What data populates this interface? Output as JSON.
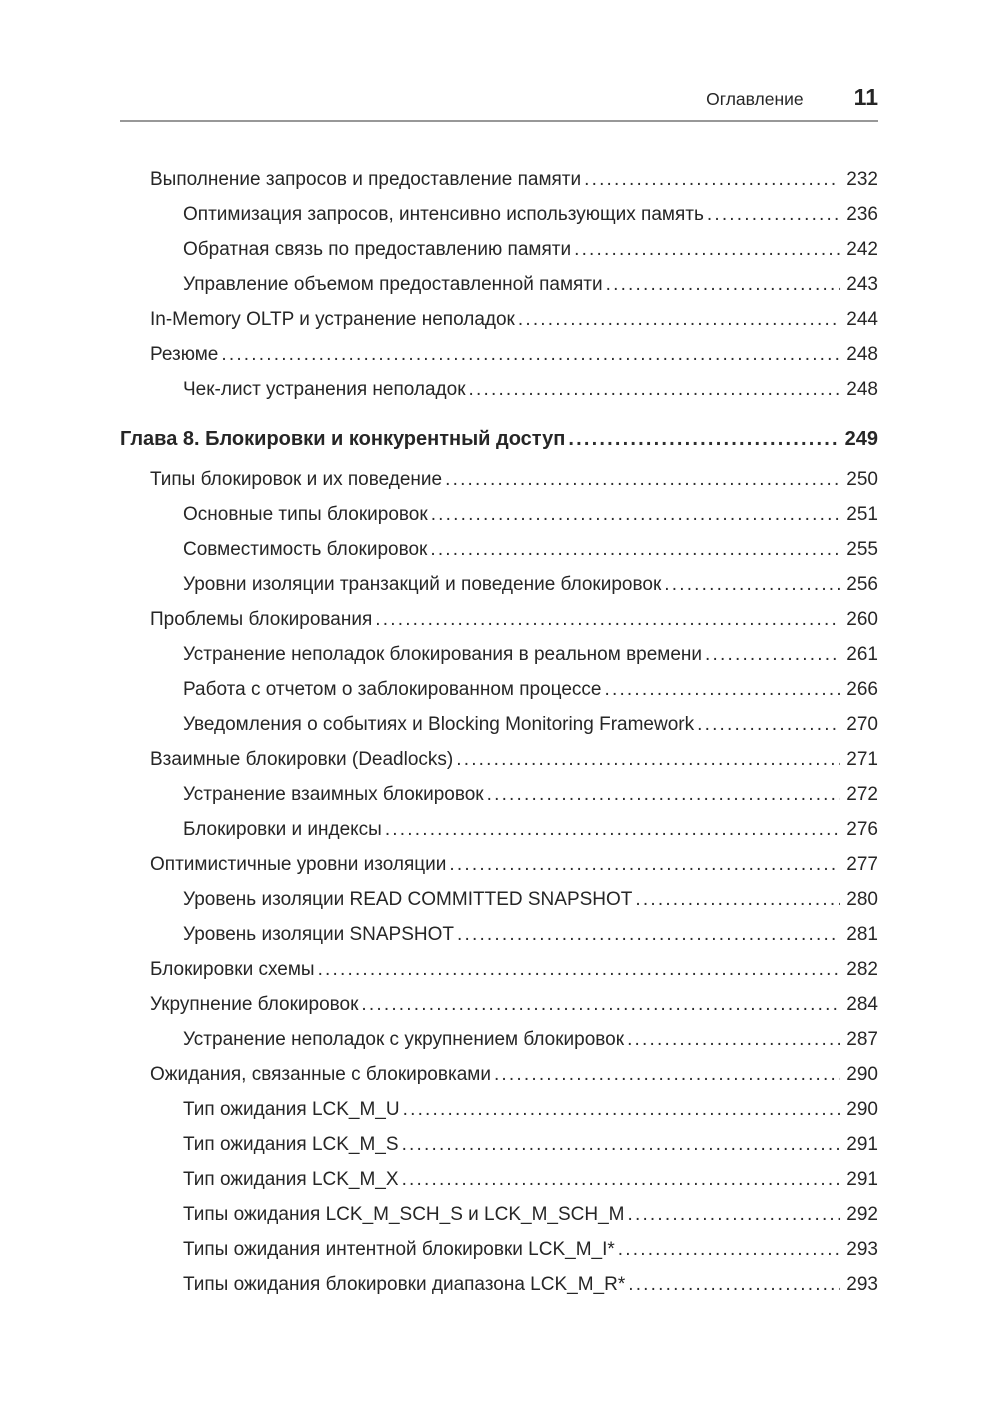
{
  "header": {
    "title": "Оглавление",
    "page_number": "11"
  },
  "toc": {
    "entries": [
      {
        "level": 1,
        "title": "Выполнение запросов и предоставление памяти",
        "page": "232"
      },
      {
        "level": 2,
        "title": "Оптимизация запросов, интенсивно использующих память",
        "page": "236"
      },
      {
        "level": 2,
        "title": "Обратная связь по предоставлению памяти",
        "page": "242"
      },
      {
        "level": 2,
        "title": "Управление объемом предоставленной памяти",
        "page": "243"
      },
      {
        "level": 1,
        "title": "In-Memory OLTP и устранение неполадок",
        "page": "244"
      },
      {
        "level": 1,
        "title": "Резюме",
        "page": "248"
      },
      {
        "level": 2,
        "title": "Чек-лист устранения неполадок",
        "page": "248"
      },
      {
        "level": 0,
        "title": "Глава 8. Блокировки и конкурентный доступ",
        "page": "249"
      },
      {
        "level": 1,
        "title": "Типы блокировок и их поведение",
        "page": "250"
      },
      {
        "level": 2,
        "title": "Основные типы блокировок",
        "page": "251"
      },
      {
        "level": 2,
        "title": "Совместимость блокировок",
        "page": "255"
      },
      {
        "level": 2,
        "title": "Уровни изоляции транзакций и поведение блокировок",
        "page": "256"
      },
      {
        "level": 1,
        "title": "Проблемы блокирования",
        "page": "260"
      },
      {
        "level": 2,
        "title": "Устранение неполадок блокирования в реальном времени",
        "page": "261"
      },
      {
        "level": 2,
        "title": "Работа с отчетом о заблокированном процессе",
        "page": "266"
      },
      {
        "level": 2,
        "title": "Уведомления о событиях и Blocking Monitoring Framework",
        "page": "270"
      },
      {
        "level": 1,
        "title": "Взаимные блокировки (Deadlocks)",
        "page": "271"
      },
      {
        "level": 2,
        "title": "Устранение взаимных блокировок",
        "page": "272"
      },
      {
        "level": 2,
        "title": "Блокировки и индексы",
        "page": "276"
      },
      {
        "level": 1,
        "title": "Оптимистичные уровни изоляции",
        "page": "277"
      },
      {
        "level": 2,
        "title": "Уровень изоляции READ COMMITTED SNAPSHOT",
        "page": "280"
      },
      {
        "level": 2,
        "title": "Уровень изоляции SNAPSHOT",
        "page": "281"
      },
      {
        "level": 1,
        "title": "Блокировки схемы",
        "page": "282"
      },
      {
        "level": 1,
        "title": "Укрупнение блокировок",
        "page": "284"
      },
      {
        "level": 2,
        "title": "Устранение неполадок с укрупнением блокировок",
        "page": "287"
      },
      {
        "level": 1,
        "title": "Ожидания, связанные с блокировками",
        "page": "290"
      },
      {
        "level": 2,
        "title": "Тип ожидания LCK_M_U",
        "page": "290"
      },
      {
        "level": 2,
        "title": "Тип ожидания LCK_M_S",
        "page": "291"
      },
      {
        "level": 2,
        "title": "Тип ожидания LCK_M_X",
        "page": "291"
      },
      {
        "level": 2,
        "title": "Типы ожидания LCK_M_SCH_S и LCK_M_SCH_M",
        "page": "292"
      },
      {
        "level": 2,
        "title": "Типы ожидания интентной блокировки LCK_M_I*",
        "page": "293"
      },
      {
        "level": 2,
        "title": "Типы ожидания блокировки диапазона LCK_M_R*",
        "page": "293"
      }
    ]
  }
}
